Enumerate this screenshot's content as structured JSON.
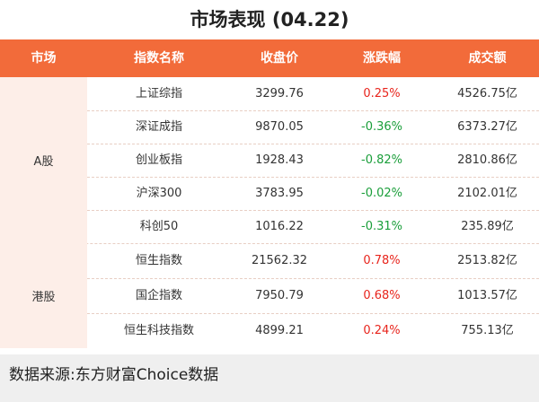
{
  "header": {
    "title": "市场表现 (04.22)"
  },
  "table": {
    "columns": [
      "市场",
      "指数名称",
      "收盘价",
      "涨跌幅",
      "成交额"
    ],
    "groups": [
      {
        "market": "A股",
        "rows": [
          [
            "上证综指",
            "3299.76",
            "0.25%",
            "4526.75亿"
          ],
          [
            "深证成指",
            "9870.05",
            "-0.36%",
            "6373.27亿"
          ],
          [
            "创业板指",
            "1928.43",
            "-0.82%",
            "2810.86亿"
          ],
          [
            "沪深300",
            "3783.95",
            "-0.02%",
            "2102.01亿"
          ],
          [
            "科创50",
            "1016.22",
            "-0.31%",
            "235.89亿"
          ]
        ]
      },
      {
        "market": "港股",
        "rows": [
          [
            "恒生指数",
            "21562.32",
            "0.78%",
            "2513.82亿"
          ],
          [
            "国企指数",
            "7950.79",
            "0.68%",
            "1013.57亿"
          ],
          [
            "恒生科技指数",
            "4899.21",
            "0.24%",
            "755.13亿"
          ]
        ]
      }
    ]
  },
  "footer": {
    "source": "数据来源:东方财富Choice数据"
  }
}
